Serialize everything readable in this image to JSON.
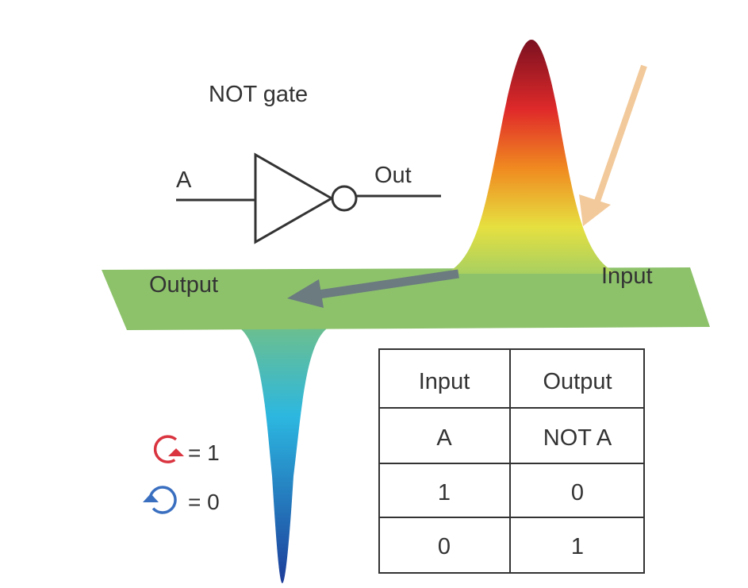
{
  "gate": {
    "title": "NOT gate",
    "input_label": "A",
    "output_label": "Out"
  },
  "plane": {
    "output_label": "Output",
    "input_label": "Input"
  },
  "legend": [
    {
      "icon": "clockwise-circle-arrow-icon",
      "color": "#d9343f",
      "text": "= 1"
    },
    {
      "icon": "counterclockwise-circle-arrow-icon",
      "color": "#3a6fc0",
      "text": "= 0"
    }
  ],
  "truth_table": {
    "headers": [
      "Input",
      "Output"
    ],
    "rows": [
      [
        "A",
        "NOT A"
      ],
      [
        "1",
        "0"
      ],
      [
        "0",
        "1"
      ]
    ]
  },
  "colors": {
    "plane": "#8dc26b",
    "arrow_gray": "#6b7b7f",
    "arrow_tan": "#f2c99a"
  }
}
